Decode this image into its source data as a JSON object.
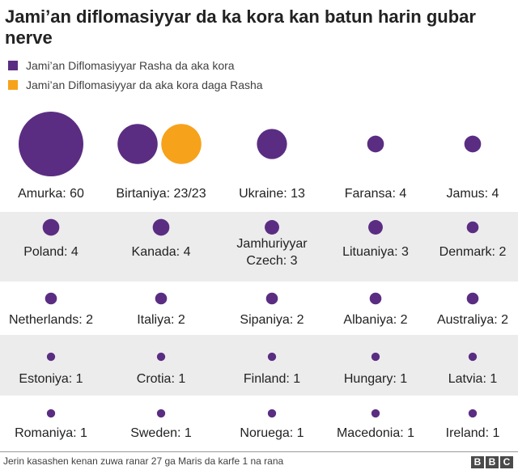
{
  "title": "Jami’an diflomasiyyar da ka kora kan batun harin gubar nerve",
  "legend": [
    {
      "label": "Jami’an Diflomasiyyar Rasha da aka kora",
      "color": "#5a2d82"
    },
    {
      "label": "Jami’an Diflomasiyyar da aka kora daga Rasha",
      "color": "#f7a21b"
    }
  ],
  "source": "Jerin kasashen kenan zuwa ranar 27 ga Maris da karfe 1 na rana",
  "logo": "BBC",
  "chart_data": {
    "type": "proportional-symbol",
    "title": "Jami’an diflomasiyyar da ka kora kan batun harin gubar nerve",
    "series": [
      {
        "name": "Jami’an Diflomasiyyar Rasha da aka kora",
        "color": "#5a2d82"
      },
      {
        "name": "Jami’an Diflomasiyyar da aka kora daga Rasha",
        "color": "#f7a21b"
      }
    ],
    "countries": [
      {
        "label": "Amurka: 60",
        "expelled": 60,
        "retaliation": null
      },
      {
        "label": "Birtaniya: 23/23",
        "expelled": 23,
        "retaliation": 23
      },
      {
        "label": "Ukraine: 13",
        "expelled": 13,
        "retaliation": null
      },
      {
        "label": "Faransa: 4",
        "expelled": 4,
        "retaliation": null
      },
      {
        "label": "Jamus: 4",
        "expelled": 4,
        "retaliation": null
      },
      {
        "label": "Poland: 4",
        "expelled": 4,
        "retaliation": null
      },
      {
        "label": "Kanada: 4",
        "expelled": 4,
        "retaliation": null
      },
      {
        "label": "Jamhuriyyar Czech: 3",
        "expelled": 3,
        "retaliation": null
      },
      {
        "label": "Lituaniya: 3",
        "expelled": 3,
        "retaliation": null
      },
      {
        "label": "Denmark: 2",
        "expelled": 2,
        "retaliation": null
      },
      {
        "label": "Netherlands: 2",
        "expelled": 2,
        "retaliation": null
      },
      {
        "label": "Italiya: 2",
        "expelled": 2,
        "retaliation": null
      },
      {
        "label": "Sipaniya: 2",
        "expelled": 2,
        "retaliation": null
      },
      {
        "label": "Albaniya: 2",
        "expelled": 2,
        "retaliation": null
      },
      {
        "label": "Australiya: 2",
        "expelled": 2,
        "retaliation": null
      },
      {
        "label": "Estoniya: 1",
        "expelled": 1,
        "retaliation": null
      },
      {
        "label": "Crotia: 1",
        "expelled": 1,
        "retaliation": null
      },
      {
        "label": "Finland: 1",
        "expelled": 1,
        "retaliation": null
      },
      {
        "label": "Hungary: 1",
        "expelled": 1,
        "retaliation": null
      },
      {
        "label": "Latvia: 1",
        "expelled": 1,
        "retaliation": null
      },
      {
        "label": "Romaniya: 1",
        "expelled": 1,
        "retaliation": null
      },
      {
        "label": "Sweden: 1",
        "expelled": 1,
        "retaliation": null
      },
      {
        "label": "Noruega: 1",
        "expelled": 1,
        "retaliation": null
      },
      {
        "label": "Macedonia: 1",
        "expelled": 1,
        "retaliation": null
      },
      {
        "label": "Ireland: 1",
        "expelled": 1,
        "retaliation": null
      }
    ]
  }
}
